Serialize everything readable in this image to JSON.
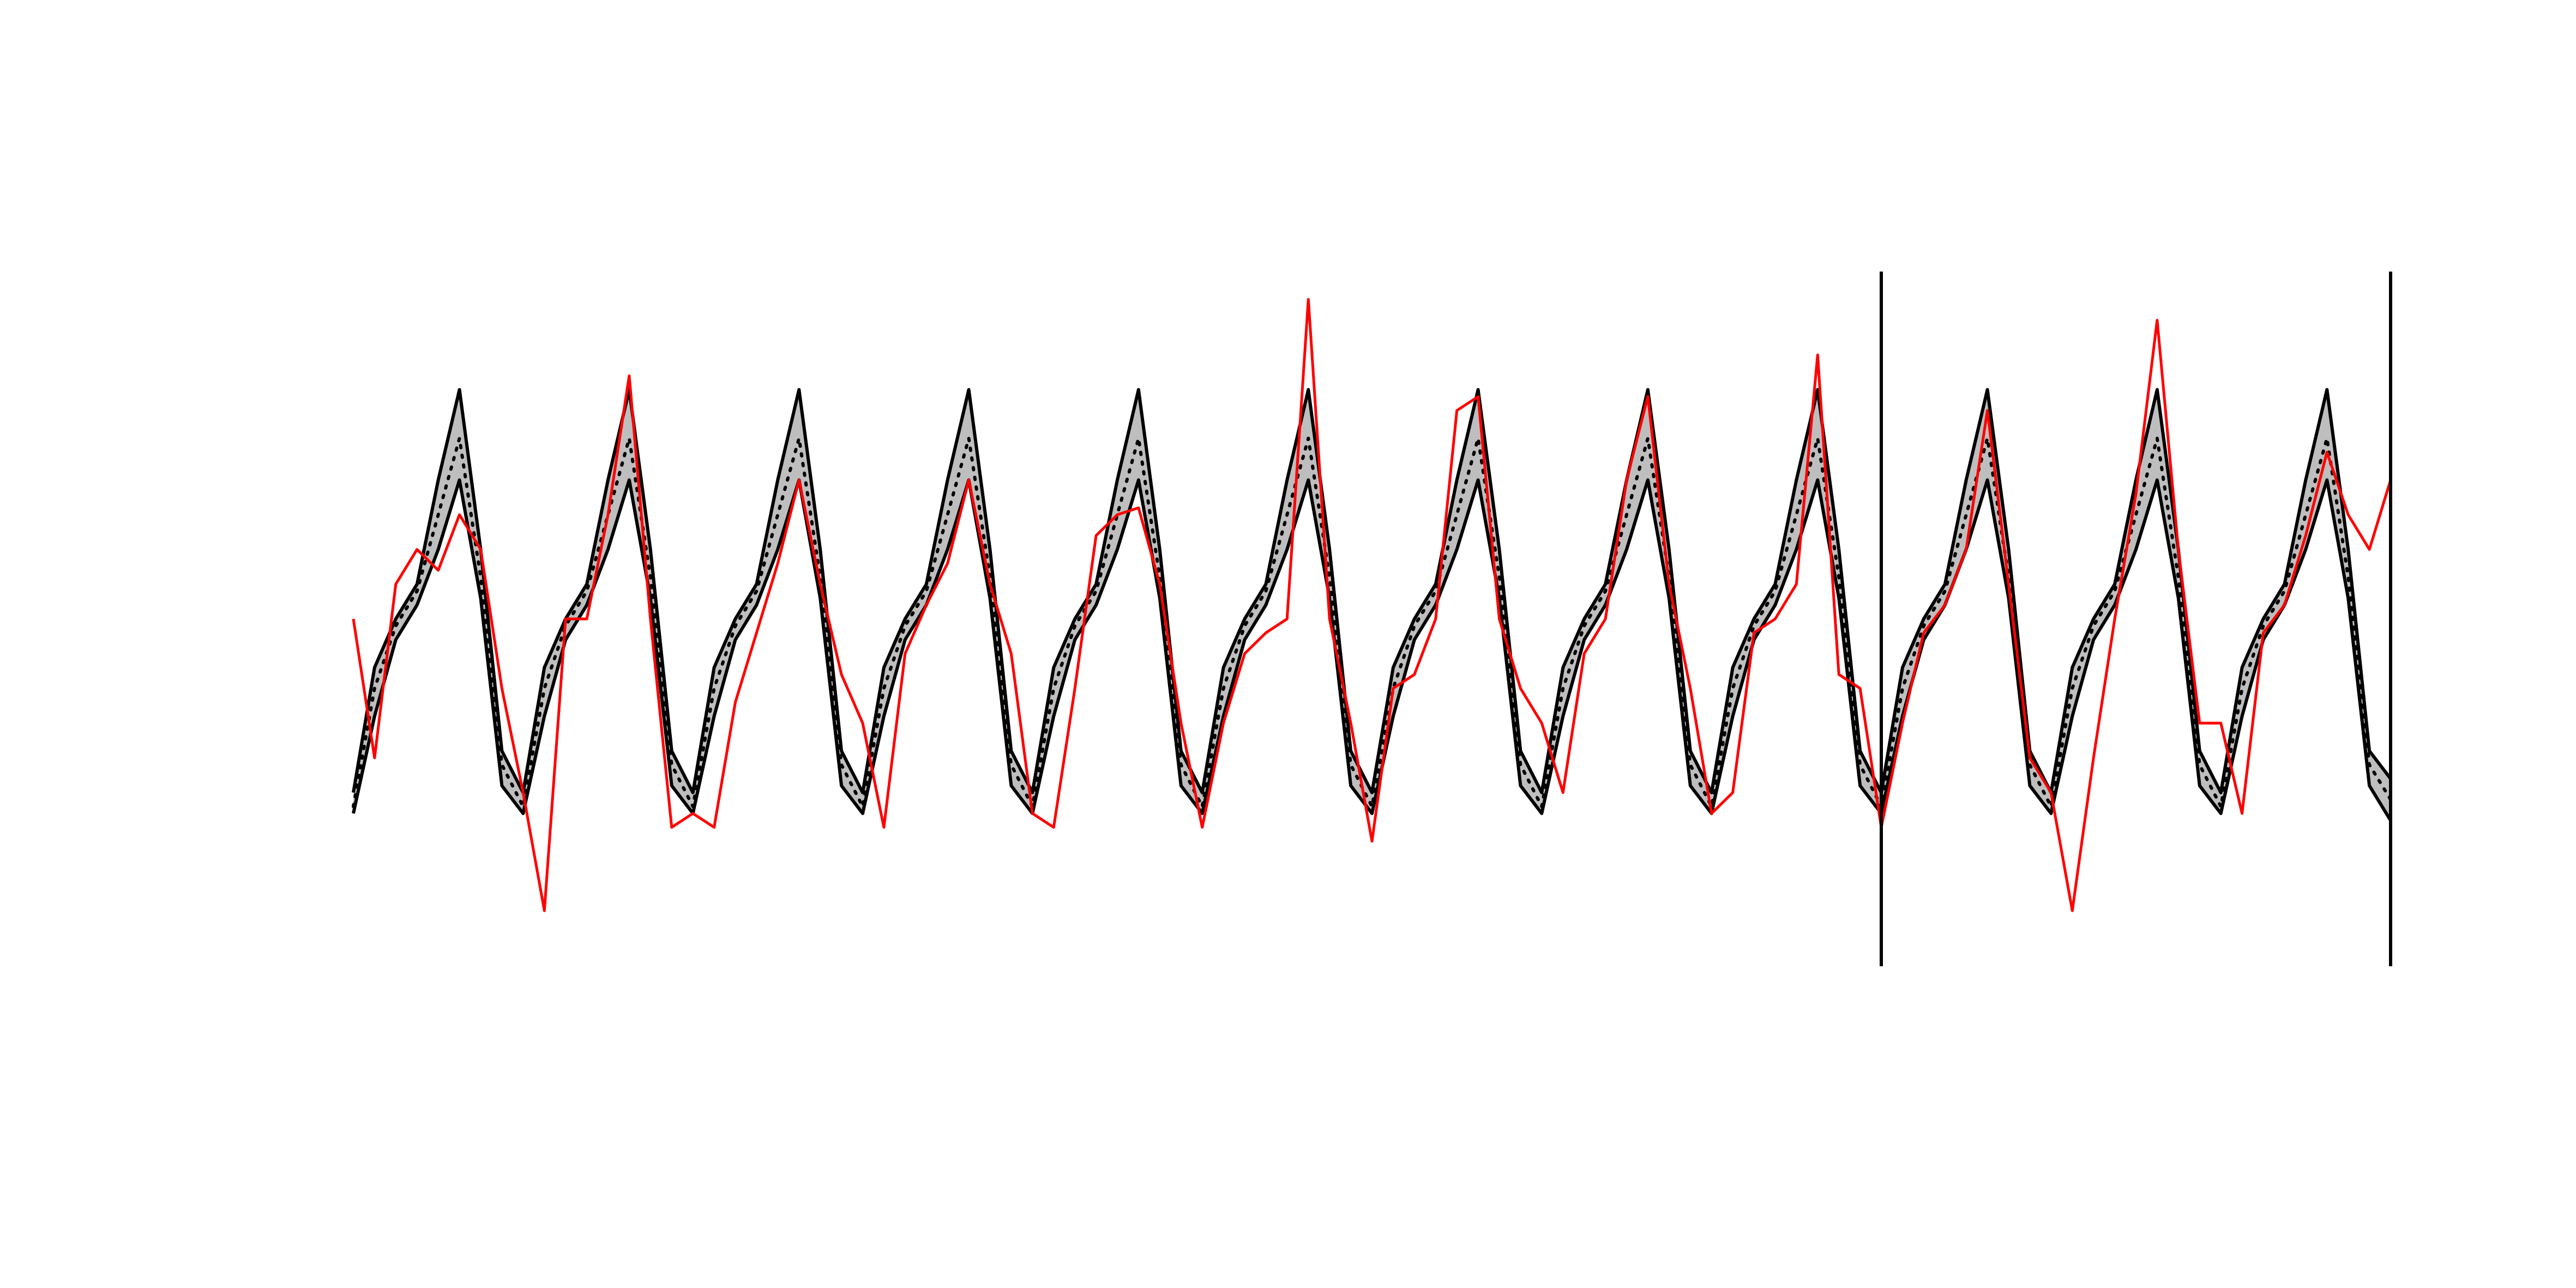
{
  "chart_data": {
    "type": "line",
    "x": [
      0,
      1,
      2,
      3,
      4,
      5,
      6,
      7,
      8,
      9,
      10,
      11,
      12,
      13,
      14,
      15,
      16,
      17,
      18,
      19,
      20,
      21,
      22,
      23,
      24,
      25,
      26,
      27,
      28,
      29,
      30,
      31,
      32,
      33,
      34,
      35,
      36,
      37,
      38,
      39,
      40,
      41,
      42,
      43,
      44,
      45,
      46,
      47,
      48,
      49,
      50,
      51,
      52,
      53,
      54,
      55,
      56,
      57,
      58,
      59,
      60,
      61,
      62,
      63,
      64,
      65,
      66,
      67,
      68,
      69,
      70,
      71,
      72,
      73,
      74,
      75,
      76,
      77,
      78,
      79,
      80,
      81,
      82,
      83,
      84,
      85,
      86,
      87,
      88,
      89,
      90,
      91,
      92,
      93,
      94,
      95,
      96
    ],
    "xlim": [
      0,
      96
    ],
    "ylim": [
      0,
      100
    ],
    "vlines": [
      72,
      96
    ],
    "band": {
      "between": [
        0,
        1
      ],
      "color": "#bebebe"
    },
    "series": [
      {
        "color": "#000000",
        "style": "solid",
        "values": [
          22,
          36,
          47,
          52,
          60,
          70,
          53,
          26,
          22,
          36,
          47,
          52,
          60,
          70,
          53,
          26,
          22,
          36,
          47,
          52,
          60,
          70,
          53,
          26,
          22,
          36,
          47,
          52,
          60,
          70,
          53,
          26,
          22,
          36,
          47,
          52,
          60,
          70,
          53,
          26,
          22,
          36,
          47,
          52,
          60,
          70,
          53,
          26,
          22,
          36,
          47,
          52,
          60,
          70,
          53,
          26,
          22,
          36,
          47,
          52,
          60,
          70,
          53,
          26,
          22,
          36,
          47,
          52,
          60,
          70,
          53,
          26,
          22,
          36,
          47,
          52,
          60,
          70,
          53,
          26,
          22,
          36,
          47,
          52,
          60,
          70,
          53,
          26,
          22,
          36,
          47,
          52,
          60,
          70,
          53,
          26,
          21
        ]
      },
      {
        "color": "#000000",
        "style": "solid",
        "values": [
          25,
          43,
          50,
          55,
          70,
          83,
          60,
          31,
          25,
          43,
          50,
          55,
          70,
          83,
          60,
          31,
          25,
          43,
          50,
          55,
          70,
          83,
          60,
          31,
          25,
          43,
          50,
          55,
          70,
          83,
          60,
          31,
          25,
          43,
          50,
          55,
          70,
          83,
          60,
          31,
          25,
          43,
          50,
          55,
          70,
          83,
          60,
          31,
          25,
          43,
          50,
          55,
          70,
          83,
          60,
          31,
          25,
          43,
          50,
          55,
          70,
          83,
          60,
          31,
          25,
          43,
          50,
          55,
          70,
          83,
          60,
          31,
          25,
          43,
          50,
          55,
          70,
          83,
          60,
          31,
          25,
          43,
          50,
          55,
          70,
          83,
          60,
          31,
          25,
          43,
          50,
          55,
          70,
          83,
          60,
          31,
          27
        ]
      },
      {
        "color": "#000000",
        "style": "dotted",
        "values": [
          23,
          40,
          49,
          54,
          65,
          76,
          56,
          29,
          23,
          40,
          49,
          54,
          65,
          76,
          56,
          29,
          23,
          40,
          49,
          54,
          65,
          76,
          56,
          29,
          23,
          40,
          49,
          54,
          65,
          76,
          56,
          29,
          23,
          40,
          49,
          54,
          65,
          76,
          56,
          29,
          23,
          40,
          49,
          54,
          65,
          76,
          56,
          29,
          23,
          40,
          49,
          54,
          65,
          76,
          56,
          29,
          23,
          40,
          49,
          54,
          65,
          76,
          56,
          29,
          23,
          40,
          49,
          54,
          65,
          76,
          56,
          29,
          23,
          40,
          49,
          54,
          65,
          76,
          56,
          29,
          23,
          40,
          49,
          54,
          65,
          76,
          56,
          29,
          23,
          40,
          49,
          54,
          65,
          76,
          56,
          29,
          24
        ]
      },
      {
        "color": "#ff0000",
        "style": "solid",
        "values": [
          50,
          30,
          55,
          60,
          57,
          65,
          60,
          40,
          25,
          8,
          50,
          50,
          65,
          85,
          50,
          20,
          22,
          20,
          38,
          48,
          58,
          70,
          55,
          42,
          35,
          20,
          45,
          52,
          58,
          70,
          55,
          45,
          22,
          20,
          40,
          62,
          65,
          66,
          55,
          35,
          20,
          35,
          45,
          48,
          50,
          96,
          50,
          35,
          18,
          40,
          42,
          50,
          80,
          82,
          50,
          40,
          35,
          25,
          45,
          50,
          70,
          82,
          55,
          40,
          22,
          25,
          48,
          50,
          55,
          88,
          42,
          40,
          20,
          35,
          48,
          52,
          60,
          80,
          55,
          30,
          25,
          8,
          30,
          50,
          68,
          93,
          60,
          35,
          35,
          22,
          48,
          52,
          62,
          74,
          65,
          60,
          70
        ]
      }
    ]
  }
}
